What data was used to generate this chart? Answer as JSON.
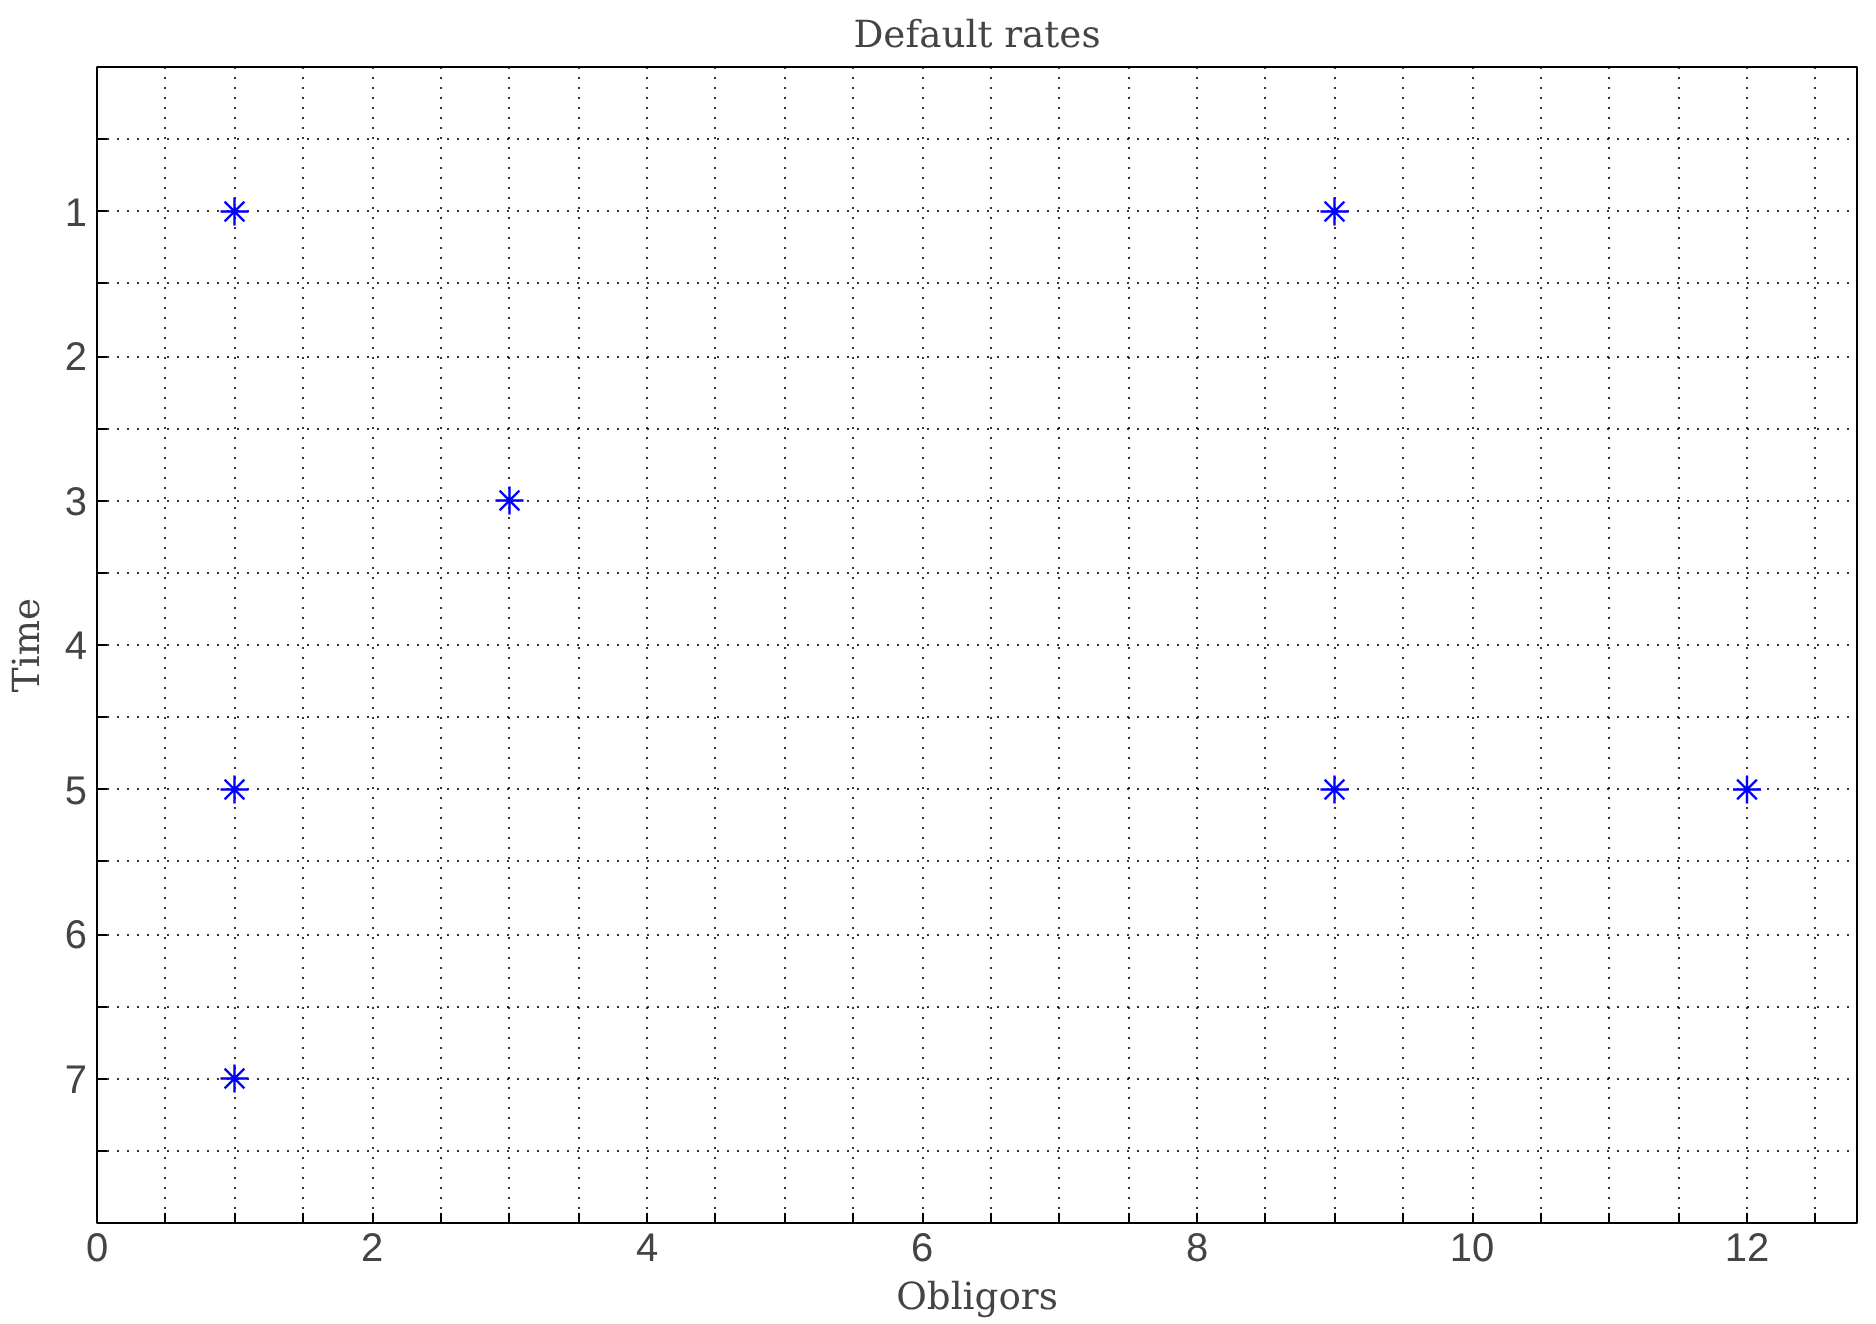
{
  "chart_data": {
    "type": "scatter",
    "title": "Default rates",
    "xlabel": "Obligors",
    "ylabel": "Time",
    "x": [
      1,
      9,
      3,
      1,
      9,
      12,
      1
    ],
    "series": [
      {
        "color": "#0000ff",
        "values": [
          1,
          1,
          3,
          5,
          5,
          5,
          7
        ]
      }
    ],
    "marker": "cross",
    "grid": true,
    "xlim": [
      0,
      12.8
    ],
    "xticks": [
      0,
      {
        "value": 0.5,
        "label": null
      },
      2,
      {
        "value": 1.5,
        "label": null
      },
      {
        "value": 1,
        "label": null
      },
      {
        "value": 2.5,
        "label": null
      },
      {
        "value": 3,
        "label": null
      },
      {
        "value": 3.5,
        "label": null
      },
      4,
      {
        "value": 4.5,
        "label": null
      },
      {
        "value": 5,
        "label": null
      },
      {
        "value": 5.5,
        "label": null
      },
      6,
      {
        "value": 6.5,
        "label": null
      },
      {
        "value": 7,
        "label": null
      },
      {
        "value": 7.5,
        "label": null
      },
      8,
      {
        "value": 8.5,
        "label": null
      },
      {
        "value": 9,
        "label": null
      },
      {
        "value": 9.5,
        "label": null
      },
      10,
      {
        "value": 10.5,
        "label": null
      },
      {
        "value": 11,
        "label": null
      },
      {
        "value": 11.5,
        "label": null
      },
      12,
      {
        "value": 12.5,
        "label": null
      }
    ],
    "ylim": [
      8,
      0
    ],
    "yticks": [
      {
        "value": 0.5,
        "label": null
      },
      1,
      {
        "value": 1.5,
        "label": null
      },
      2,
      {
        "value": 2.5,
        "label": null
      },
      3,
      {
        "value": 3.5,
        "label": null
      },
      4,
      {
        "value": 4.5,
        "label": null
      },
      5,
      {
        "value": 5.5,
        "label": null
      },
      6,
      {
        "value": 6.5,
        "label": null
      },
      7,
      {
        "value": 7.5,
        "label": null
      }
    ]
  }
}
